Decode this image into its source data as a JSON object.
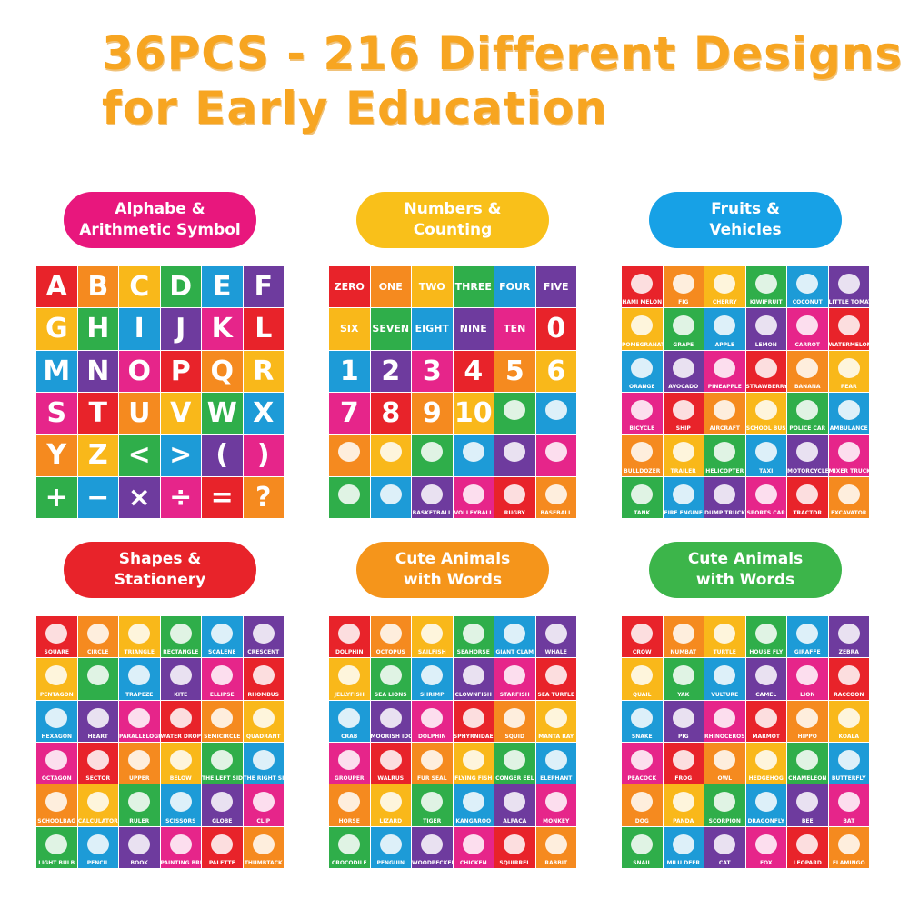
{
  "header": {
    "title": [
      "36PCS - 216 Different Designs",
      "for Early Education"
    ]
  },
  "panels": [
    {
      "badge": [
        "Alphabe &",
        "Arithmetic Symbol"
      ],
      "cells": [
        "A",
        "B",
        "C",
        "D",
        "E",
        "F",
        "G",
        "H",
        "I",
        "J",
        "K",
        "L",
        "M",
        "N",
        "O",
        "P",
        "Q",
        "R",
        "S",
        "T",
        "U",
        "V",
        "W",
        "X",
        "Y",
        "Z",
        "<",
        ">",
        "(",
        ")",
        "+",
        "−",
        "×",
        "÷",
        "=",
        "?"
      ]
    },
    {
      "badge": [
        "Numbers &",
        "Counting"
      ],
      "cells": [
        "ZERO",
        "ONE",
        "TWO",
        "THREE",
        "FOUR",
        "FIVE",
        "SIX",
        "SEVEN",
        "EIGHT",
        "NINE",
        "TEN",
        "0",
        "1",
        "2",
        "3",
        "4",
        "5",
        "6",
        "7",
        "8",
        "9",
        "10",
        null,
        null,
        null,
        null,
        null,
        null,
        null,
        null,
        null,
        null,
        "BASKETBALL",
        "VOLLEYBALL",
        "RUGBY",
        "BASEBALL"
      ]
    },
    {
      "badge": [
        "Fruits &",
        "Vehicles"
      ],
      "cells": [
        "HAMI MELON",
        "FIG",
        "CHERRY",
        "KIWIFRUIT",
        "COCONUT",
        "LITTLE TOMATO",
        "POMEGRANATE",
        "GRAPE",
        "APPLE",
        "LEMON",
        "CARROT",
        "WATERMELON",
        "ORANGE",
        "AVOCADO",
        "PINEAPPLE",
        "STRAWBERRY",
        "BANANA",
        "PEAR",
        "BICYCLE",
        "SHIP",
        "AIRCRAFT",
        "SCHOOL BUS",
        "POLICE CAR",
        "AMBULANCE",
        "BULLDOZER",
        "TRAILER",
        "HELICOPTER",
        "TAXI",
        "MOTORCYCLE",
        "MIXER TRUCK",
        "TANK",
        "FIRE ENGINE",
        "DUMP TRUCK",
        "SPORTS CAR",
        "TRACTOR",
        "EXCAVATOR"
      ]
    },
    {
      "badge": [
        "Shapes &",
        "Stationery"
      ],
      "cells": [
        "SQUARE",
        "CIRCLE",
        "TRIANGLE",
        "RECTANGLE",
        "SCALENE",
        "CRESCENT",
        "PENTAGON",
        null,
        "TRAPEZE",
        "KITE",
        "ELLIPSE",
        "RHOMBUS",
        "HEXAGON",
        "HEART",
        "PARALLELOGRAM",
        "WATER DROPLET",
        "SEMICIRCLE",
        "QUADRANT",
        "OCTAGON",
        "SECTOR",
        "UPPER",
        "BELOW",
        "THE LEFT SIDE",
        "THE RIGHT SIDE",
        "SCHOOLBAG",
        "CALCULATOR",
        "RULER",
        "SCISSORS",
        "GLOBE",
        "CLIP",
        "LIGHT BULB",
        "PENCIL",
        "BOOK",
        "PAINTING BRUSH",
        "PALETTE",
        "THUMBTACK"
      ]
    },
    {
      "badge": [
        "Cute Animals",
        "with Words"
      ],
      "cells": [
        "DOLPHIN",
        "OCTOPUS",
        "SAILFISH",
        "SEAHORSE",
        "GIANT CLAM",
        "WHALE",
        "JELLYFISH",
        "SEA LIONS",
        "SHRIMP",
        "CLOWNFISH",
        "STARFISH",
        "SEA TURTLE",
        "CRAB",
        "MOORISH IDOL",
        "DOLPHIN",
        "SPHYRNIDAE",
        "SQUID",
        "MANTA RAY",
        "GROUPER",
        "WALRUS",
        "FUR SEAL",
        "FLYING FISH",
        "CONGER EEL",
        "ELEPHANT",
        "HORSE",
        "LIZARD",
        "TIGER",
        "KANGAROO",
        "ALPACA",
        "MONKEY",
        "CROCODILE",
        "PENGUIN",
        "WOODPECKER",
        "CHICKEN",
        "SQUIRREL",
        "RABBIT"
      ]
    },
    {
      "badge": [
        "Cute Animals",
        "with Words"
      ],
      "cells": [
        "CROW",
        "NUMBAT",
        "TURTLE",
        "HOUSE FLY",
        "GIRAFFE",
        "ZEBRA",
        "QUAIL",
        "YAK",
        "VULTURE",
        "CAMEL",
        "LION",
        "RACCOON",
        "SNAKE",
        "PIG",
        "RHINOCEROS",
        "MARMOT",
        "HIPPO",
        "KOALA",
        "PEACOCK",
        "FROG",
        "OWL",
        "HEDGEHOG",
        "CHAMELEON",
        "BUTTERFLY",
        "DOG",
        "PANDA",
        "SCORPION",
        "DRAGONFLY",
        "BEE",
        "BAT",
        "SNAIL",
        "MILU DEER",
        "CAT",
        "FOX",
        "LEOPARD",
        "FLAMINGO"
      ]
    }
  ]
}
